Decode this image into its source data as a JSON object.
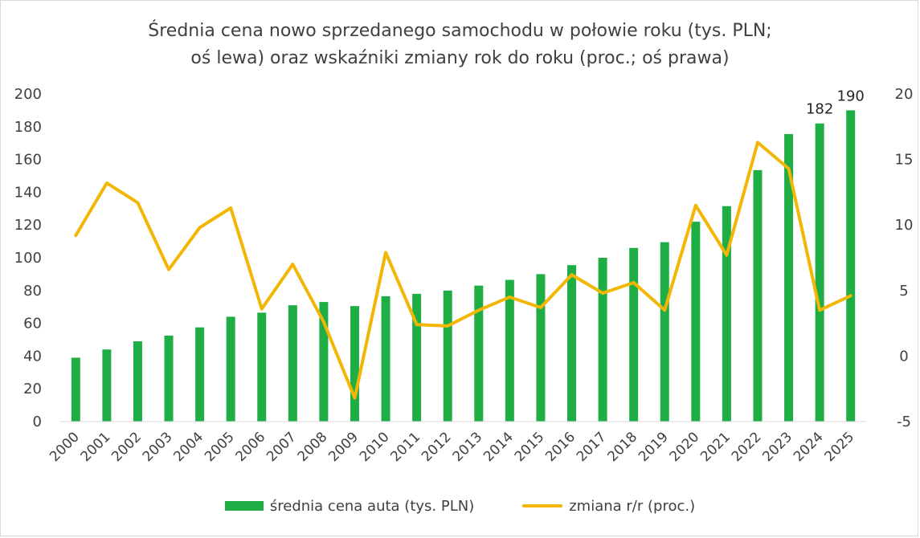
{
  "chart_data": {
    "type": "bar",
    "title_line1": "Średnia cena nowo sprzedanego samochodu w połowie roku (tys. PLN;",
    "title_line2": "oś lewa) oraz wskaźniki zmiany rok do roku (proc.; oś prawa)",
    "categories": [
      "2000",
      "2001",
      "2002",
      "2003",
      "2004",
      "2005",
      "2006",
      "2007",
      "2008",
      "2009",
      "2010",
      "2011",
      "2012",
      "2013",
      "2014",
      "2015",
      "2016",
      "2017",
      "2018",
      "2019",
      "2020",
      "2021",
      "2022",
      "2023",
      "2024",
      "2025"
    ],
    "series": [
      {
        "name": "średnia cena auta (tys. PLN)",
        "type": "bar",
        "axis": "left",
        "color": "#1fad45",
        "values": [
          39,
          44,
          49,
          52.5,
          57.5,
          64,
          66.5,
          71,
          73,
          70.5,
          76.5,
          78,
          80,
          83,
          86.5,
          90,
          95.5,
          100,
          106,
          109.5,
          122,
          131.5,
          153.5,
          175.5,
          182,
          190
        ]
      },
      {
        "name": "zmiana r/r (proc.)",
        "type": "line",
        "axis": "right",
        "color": "#f2b705",
        "values": [
          9.2,
          13.2,
          11.7,
          6.6,
          9.8,
          11.3,
          3.6,
          7.0,
          2.6,
          -3.2,
          7.9,
          2.4,
          2.3,
          3.5,
          4.5,
          3.7,
          6.2,
          4.8,
          5.6,
          3.5,
          11.5,
          7.7,
          16.3,
          14.3,
          3.5,
          4.6
        ]
      }
    ],
    "data_labels": [
      {
        "category": "2024",
        "text": "182"
      },
      {
        "category": "2025",
        "text": "190"
      }
    ],
    "ylim_left": [
      0,
      200
    ],
    "yticks_left": [
      "0",
      "20",
      "40",
      "60",
      "80",
      "100",
      "120",
      "140",
      "160",
      "180",
      "200"
    ],
    "ylim_right": [
      -5,
      20
    ],
    "yticks_right": [
      "-5",
      "0",
      "5",
      "10",
      "15",
      "20"
    ],
    "grid": false,
    "legend_position": "bottom"
  }
}
